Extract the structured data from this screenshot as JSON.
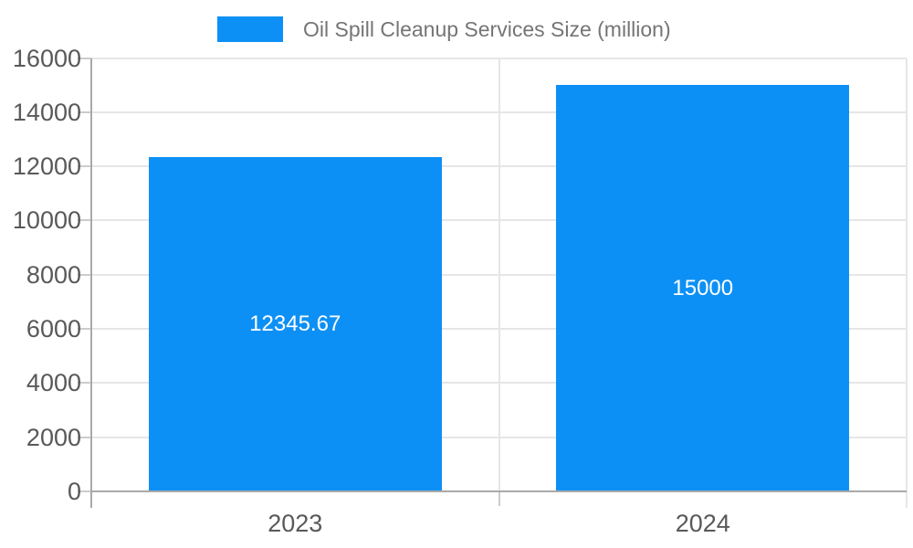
{
  "chart_data": {
    "type": "bar",
    "title": "",
    "legend": {
      "label": "Oil Spill Cleanup Services Size (million)",
      "position": "top"
    },
    "categories": [
      "2023",
      "2024"
    ],
    "series": [
      {
        "name": "Oil Spill Cleanup Services Size (million)",
        "values": [
          12345.67,
          15000
        ]
      }
    ],
    "value_labels": [
      "12345.67",
      "15000"
    ],
    "xlabel": "",
    "ylabel": "",
    "ylim": [
      0,
      16000
    ],
    "yticks": [
      0,
      2000,
      4000,
      6000,
      8000,
      10000,
      12000,
      14000,
      16000
    ],
    "grid": true,
    "legend_position": "top-center",
    "colors": {
      "bar": "#0d90f5",
      "bar_value_text": "#ffffff",
      "axis_text": "#595959",
      "legend_text": "#757575",
      "gridline": "#e6e6e6",
      "axis_line": "#a9a9a9",
      "tick_mark": "#cccccc"
    }
  }
}
